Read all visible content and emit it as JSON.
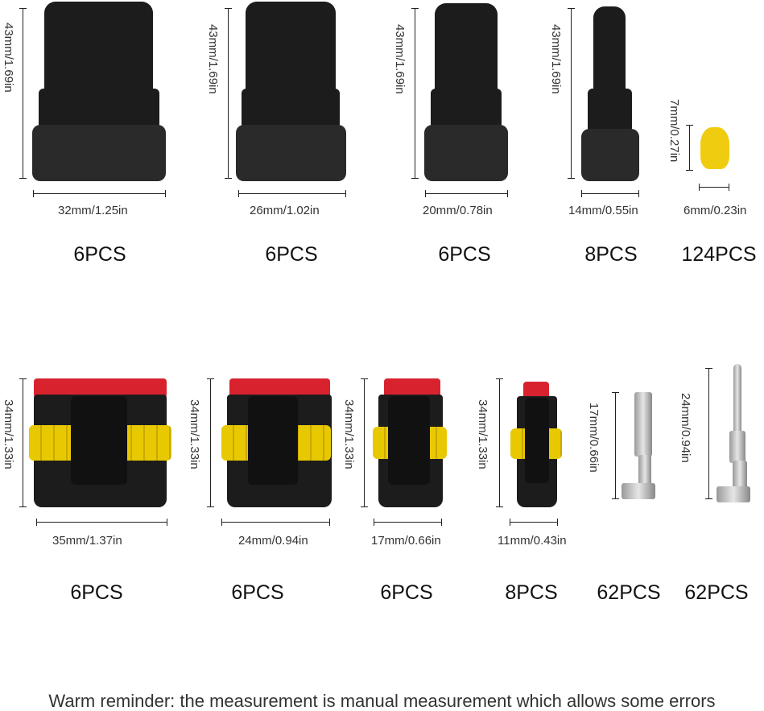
{
  "top_row": [
    {
      "height": "43mm/1.69in",
      "width": "32mm/1.25in",
      "qty": "6PCS"
    },
    {
      "height": "43mm/1.69in",
      "width": "26mm/1.02in",
      "qty": "6PCS"
    },
    {
      "height": "43mm/1.69in",
      "width": "20mm/0.78in",
      "qty": "6PCS"
    },
    {
      "height": "43mm/1.69in",
      "width": "14mm/0.55in",
      "qty": "8PCS"
    },
    {
      "height": "7mm/0.27in",
      "width": "6mm/0.23in",
      "qty": "124PCS"
    }
  ],
  "bottom_row": [
    {
      "height": "34mm/1.33in",
      "width": "35mm/1.37in",
      "qty": "6PCS"
    },
    {
      "height": "34mm/1.33in",
      "width": "24mm/0.94in",
      "qty": "6PCS"
    },
    {
      "height": "34mm/1.33in",
      "width": "17mm/0.66in",
      "qty": "6PCS"
    },
    {
      "height": "34mm/1.33in",
      "width": "11mm/0.43in",
      "qty": "8PCS"
    },
    {
      "height": "17mm/0.66in",
      "qty": "62PCS"
    },
    {
      "height": "24mm/0.94in",
      "qty": "62PCS"
    }
  ],
  "colors": {
    "connector": "#1c1c1c",
    "seal": "#f0cc10",
    "lock": "#d8232f",
    "terminal": "#c0c0c0"
  },
  "note": "Warm reminder: the measurement is manual measurement which allows some errors"
}
